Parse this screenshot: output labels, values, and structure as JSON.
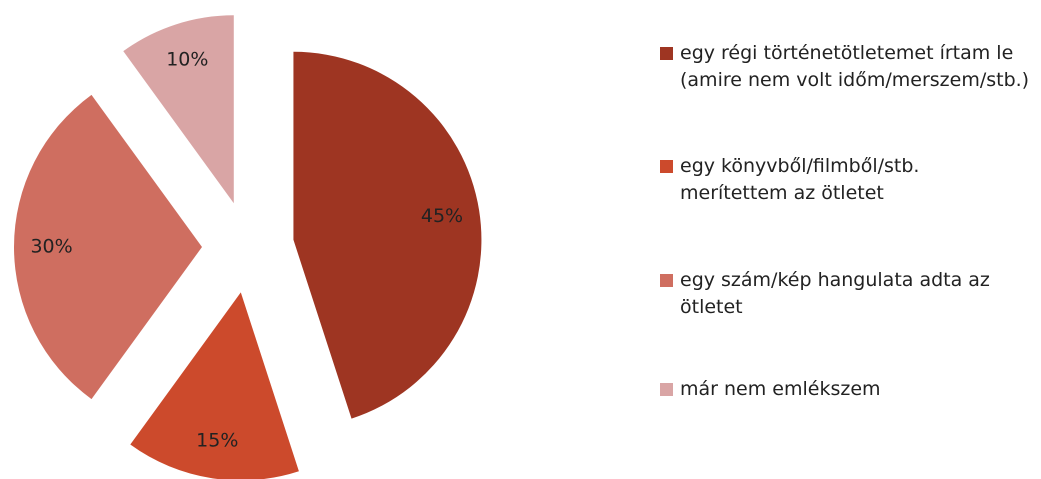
{
  "chart_data": {
    "type": "pie",
    "categories": [
      "egy régi történetötletemet írtam le (amire nem volt időm/merszem/stb.)",
      "egy könyvből/filmből/stb. merítettem az ötletet",
      "egy szám/kép hangulata adta az ötletet",
      "már nem emlékszem"
    ],
    "values": [
      45,
      15,
      30,
      10
    ],
    "value_labels": [
      "45%",
      "15%",
      "30%",
      "10%"
    ],
    "colors": [
      "#9e3522",
      "#cc4a2c",
      "#cf6e60",
      "#d9a5a5"
    ],
    "exploded": true,
    "legend": "right"
  }
}
